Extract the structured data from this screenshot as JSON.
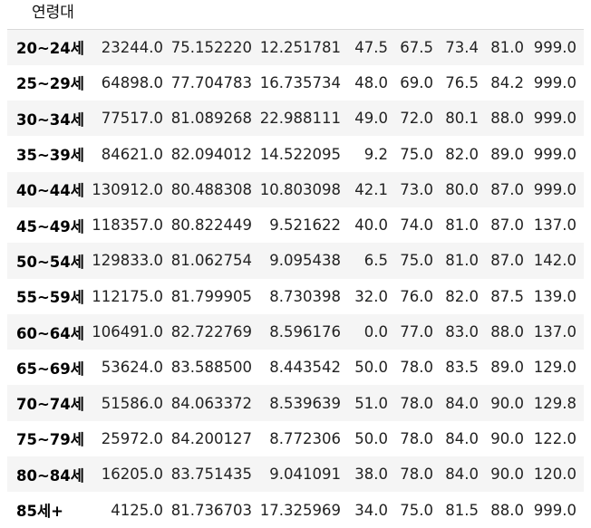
{
  "index_name": "연령대",
  "rows": [
    {
      "label": "20~24세",
      "values": [
        "23244.0",
        "75.152220",
        "12.251781",
        "47.5",
        "67.5",
        "73.4",
        "81.0",
        "999.0"
      ]
    },
    {
      "label": "25~29세",
      "values": [
        "64898.0",
        "77.704783",
        "16.735734",
        "48.0",
        "69.0",
        "76.5",
        "84.2",
        "999.0"
      ]
    },
    {
      "label": "30~34세",
      "values": [
        "77517.0",
        "81.089268",
        "22.988111",
        "49.0",
        "72.0",
        "80.1",
        "88.0",
        "999.0"
      ]
    },
    {
      "label": "35~39세",
      "values": [
        "84621.0",
        "82.094012",
        "14.522095",
        "9.2",
        "75.0",
        "82.0",
        "89.0",
        "999.0"
      ]
    },
    {
      "label": "40~44세",
      "values": [
        "130912.0",
        "80.488308",
        "10.803098",
        "42.1",
        "73.0",
        "80.0",
        "87.0",
        "999.0"
      ]
    },
    {
      "label": "45~49세",
      "values": [
        "118357.0",
        "80.822449",
        "9.521622",
        "40.0",
        "74.0",
        "81.0",
        "87.0",
        "137.0"
      ]
    },
    {
      "label": "50~54세",
      "values": [
        "129833.0",
        "81.062754",
        "9.095438",
        "6.5",
        "75.0",
        "81.0",
        "87.0",
        "142.0"
      ]
    },
    {
      "label": "55~59세",
      "values": [
        "112175.0",
        "81.799905",
        "8.730398",
        "32.0",
        "76.0",
        "82.0",
        "87.5",
        "139.0"
      ]
    },
    {
      "label": "60~64세",
      "values": [
        "106491.0",
        "82.722769",
        "8.596176",
        "0.0",
        "77.0",
        "83.0",
        "88.0",
        "137.0"
      ]
    },
    {
      "label": "65~69세",
      "values": [
        "53624.0",
        "83.588500",
        "8.443542",
        "50.0",
        "78.0",
        "83.5",
        "89.0",
        "129.0"
      ]
    },
    {
      "label": "70~74세",
      "values": [
        "51586.0",
        "84.063372",
        "8.539639",
        "51.0",
        "78.0",
        "84.0",
        "90.0",
        "129.8"
      ]
    },
    {
      "label": "75~79세",
      "values": [
        "25972.0",
        "84.200127",
        "8.772306",
        "50.0",
        "78.0",
        "84.0",
        "90.0",
        "122.0"
      ]
    },
    {
      "label": "80~84세",
      "values": [
        "16205.0",
        "83.751435",
        "9.041091",
        "38.0",
        "78.0",
        "84.0",
        "90.0",
        "120.0"
      ]
    },
    {
      "label": "85세+",
      "values": [
        "4125.0",
        "81.736703",
        "17.325969",
        "34.0",
        "75.0",
        "81.5",
        "88.0",
        "999.0"
      ]
    }
  ]
}
